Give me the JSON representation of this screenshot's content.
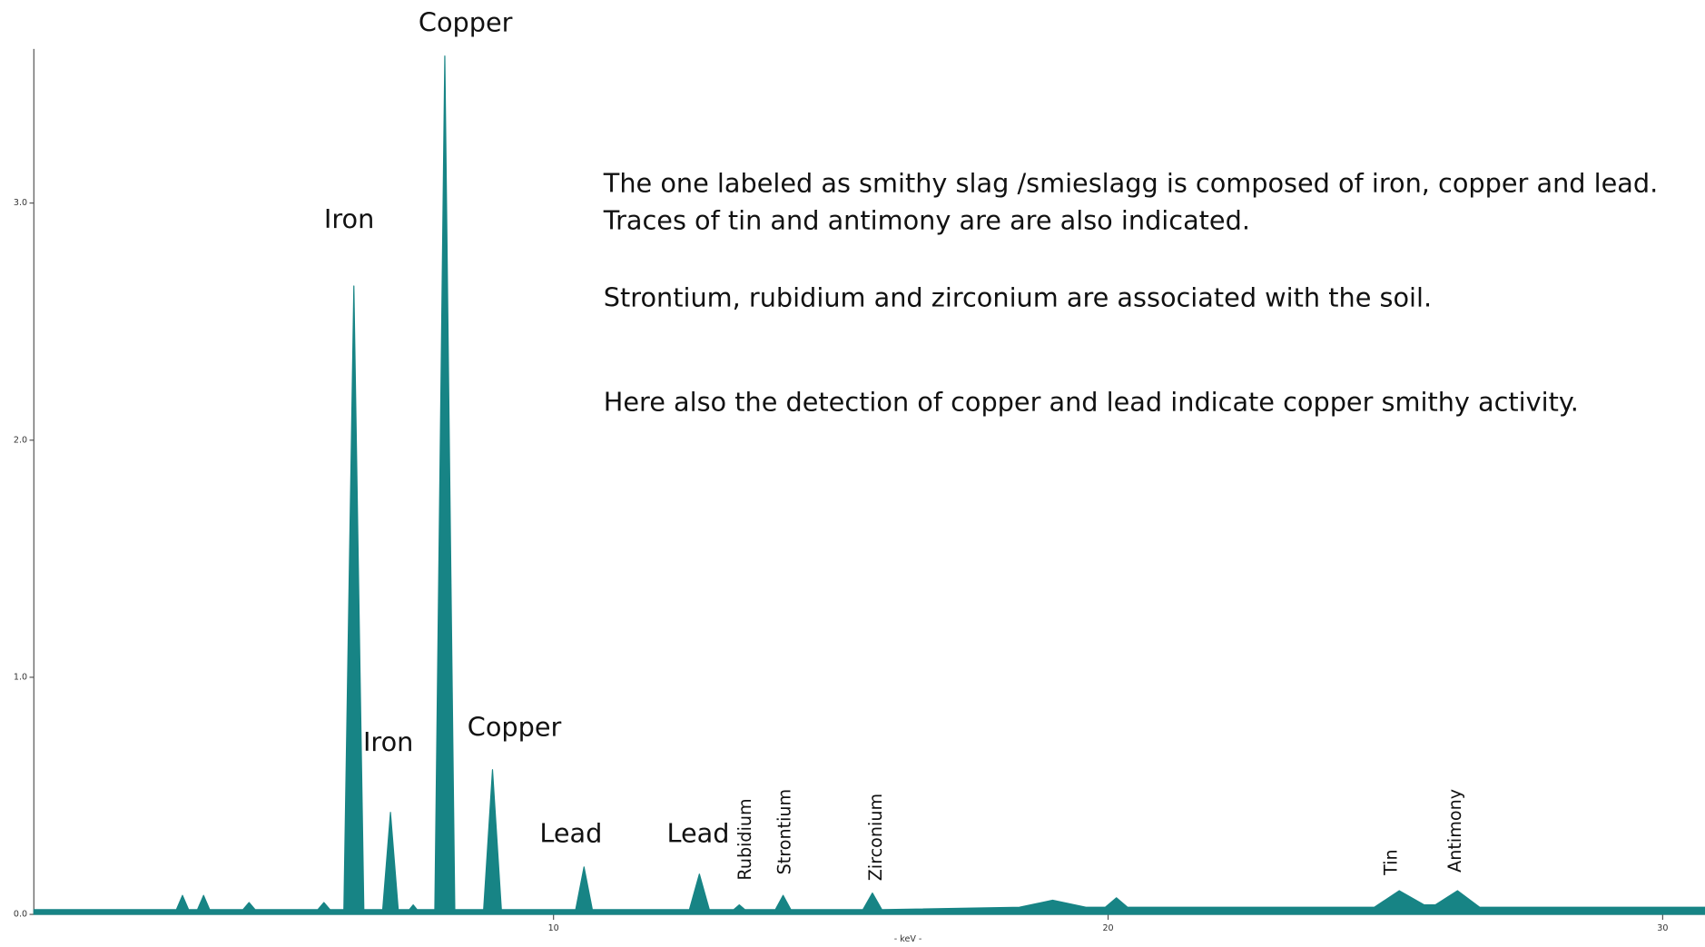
{
  "chart_data": {
    "type": "area",
    "xlabel": "- keV -",
    "color": "#178485",
    "xlim": [
      0.63,
      30.76
    ],
    "ylim": [
      0,
      3.65
    ],
    "xticks": [
      10,
      20,
      30
    ],
    "yticks": [
      {
        "value": 0,
        "label": "0.0"
      },
      {
        "value": 1,
        "label": "1.0"
      },
      {
        "value": 2,
        "label": "2.0"
      },
      {
        "value": 3,
        "label": "3.0"
      }
    ],
    "x": [
      0.63,
      3.2,
      3.31,
      3.42,
      3.58,
      3.69,
      3.8,
      4.4,
      4.51,
      4.62,
      5.75,
      5.86,
      5.97,
      6.22,
      6.4,
      6.58,
      6.92,
      7.06,
      7.2,
      7.4,
      7.47,
      7.54,
      7.86,
      8.04,
      8.22,
      8.74,
      8.9,
      9.06,
      10.4,
      10.55,
      10.7,
      12.45,
      12.63,
      12.81,
      13.25,
      13.35,
      13.45,
      14.0,
      14.14,
      14.28,
      15.58,
      15.75,
      15.92,
      18.4,
      19.0,
      19.6,
      19.95,
      20.15,
      20.35,
      24.8,
      25.25,
      25.7,
      25.9,
      26.3,
      26.7,
      30.76
    ],
    "values": [
      0.02,
      0.02,
      0.08,
      0.02,
      0.02,
      0.08,
      0.02,
      0.02,
      0.05,
      0.02,
      0.02,
      0.05,
      0.02,
      0.02,
      2.65,
      0.02,
      0.02,
      0.43,
      0.02,
      0.02,
      0.04,
      0.02,
      0.02,
      3.62,
      0.02,
      0.02,
      0.61,
      0.02,
      0.02,
      0.2,
      0.02,
      0.02,
      0.17,
      0.02,
      0.02,
      0.04,
      0.02,
      0.02,
      0.08,
      0.02,
      0.02,
      0.09,
      0.02,
      0.03,
      0.06,
      0.03,
      0.03,
      0.07,
      0.03,
      0.03,
      0.1,
      0.04,
      0.04,
      0.1,
      0.03,
      0.03
    ],
    "annotations": [
      "Copper",
      "Iron",
      "Iron",
      "Copper",
      "Lead",
      "Lead",
      "Rubidium",
      "Strontium",
      "Zirconium",
      "Tin",
      "Antimony"
    ],
    "notes": [
      "The one labeled as smithy slag /smieslagg is composed of iron, copper and lead.",
      "Traces of tin and antimony are are also indicated.",
      "Strontium, rubidium and zirconium are associated with the soil.",
      "Here also the detection of copper and lead indicate copper smithy activity."
    ]
  }
}
